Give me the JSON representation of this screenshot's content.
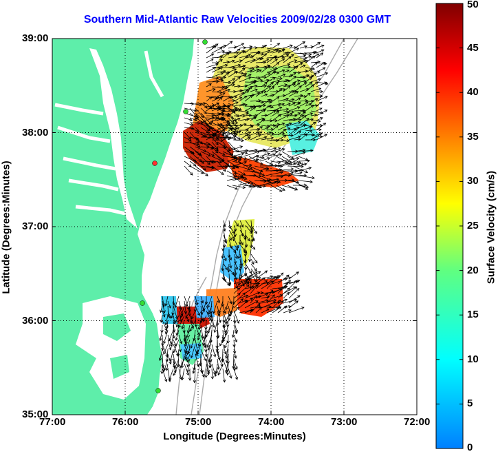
{
  "chart_data": {
    "type": "map",
    "title": "Southern Mid-Atlantic Raw Velocities 2009/02/28 0300 GMT",
    "xlabel": "Longitude (Degrees:Minutes)",
    "ylabel": "Latitude (Degrees:Minutes)",
    "colorbar_label": "Surface Velocity (cm/s)",
    "xlim": [
      -77,
      -72
    ],
    "ylim": [
      35,
      39
    ],
    "x_ticks": [
      -77,
      -76,
      -75,
      -74,
      -73,
      -72
    ],
    "x_tick_labels": [
      "77:00",
      "76:00",
      "75:00",
      "74:00",
      "73:00",
      "72:00"
    ],
    "y_ticks": [
      35,
      36,
      37,
      38,
      39
    ],
    "y_tick_labels": [
      "35:00",
      "36:00",
      "37:00",
      "38:00",
      "39:00"
    ],
    "colorbar_range": [
      0,
      50
    ],
    "colorbar_ticks": [
      0,
      5,
      10,
      15,
      20,
      25,
      30,
      35,
      40,
      45,
      50
    ],
    "colorbar_tick_labels": [
      "0",
      "5",
      "10",
      "15",
      "20",
      "25",
      "30",
      "35",
      "40",
      "45",
      "50"
    ],
    "grid": true,
    "colors": {
      "land": "#5eeeaa",
      "title": "#0000ff",
      "isobath": "#aaaaaa"
    }
  }
}
